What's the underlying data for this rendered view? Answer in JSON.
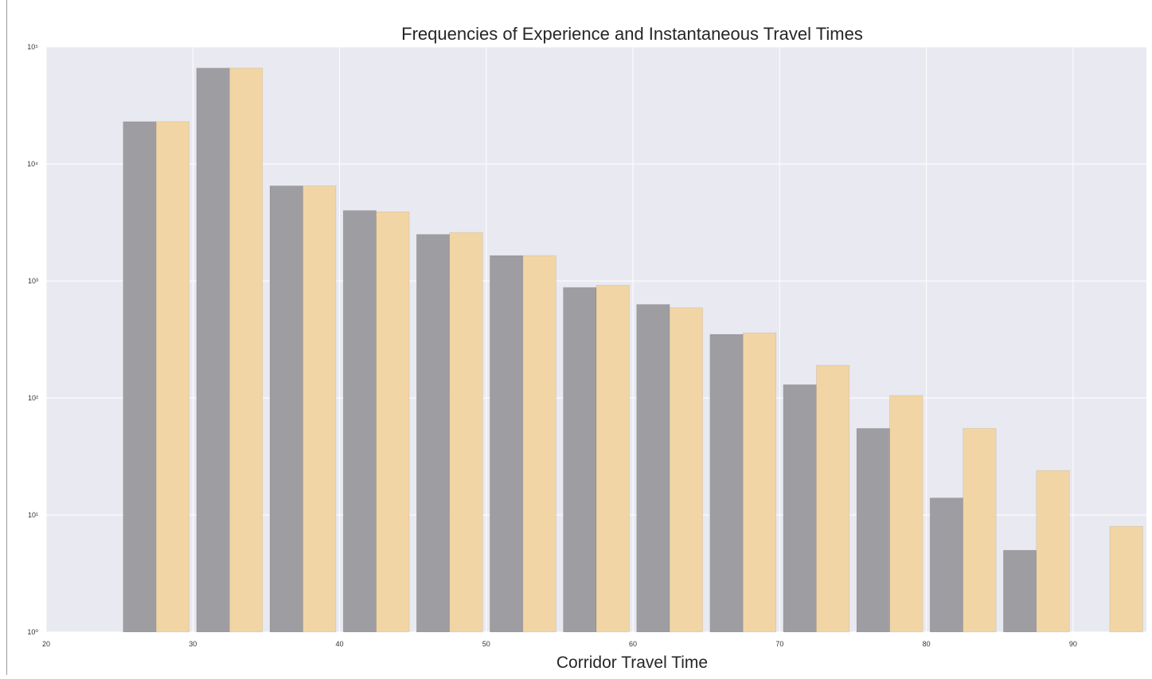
{
  "chart_data": {
    "type": "bar",
    "title": "Frequencies of Experience and Instantaneous Travel Times",
    "xlabel": "Corridor Travel Time",
    "ylabel": "",
    "yscale": "log",
    "xlim": [
      20,
      95
    ],
    "ylim": [
      1,
      100000
    ],
    "xticks": [
      20,
      30,
      40,
      50,
      60,
      70,
      80,
      90
    ],
    "xtick_labels": [
      "20",
      "30",
      "40",
      "50",
      "60",
      "70",
      "80",
      "90"
    ],
    "yticks": [
      1,
      10,
      100,
      1000,
      10000,
      100000
    ],
    "ytick_labels": [
      "10⁰",
      "10¹",
      "10²",
      "10³",
      "10⁴",
      "10⁵"
    ],
    "bin_start": [
      25,
      30,
      35,
      40,
      45,
      50,
      55,
      60,
      65,
      70,
      75,
      80,
      85,
      90
    ],
    "bin_end": [
      30,
      35,
      40,
      45,
      50,
      55,
      60,
      65,
      70,
      75,
      80,
      85,
      90,
      95
    ],
    "series": [
      {
        "color": "#9e9da2",
        "values": [
          23000,
          66000,
          6500,
          4000,
          2500,
          1650,
          880,
          630,
          350,
          130,
          55,
          14,
          5,
          0
        ]
      },
      {
        "color": "#f2d5a4",
        "values": [
          23000,
          66000,
          6500,
          3900,
          2600,
          1650,
          920,
          590,
          360,
          190,
          105,
          55,
          24,
          8
        ]
      }
    ],
    "grid": true,
    "background_color": "#e8e9f1",
    "legend": "none"
  }
}
